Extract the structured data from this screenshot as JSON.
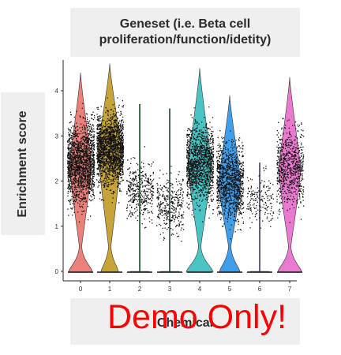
{
  "chart_data": {
    "type": "violin",
    "title": "Geneset (i.e. Beta cell\nproliferation/function/idetity)",
    "xlabel": "Chemical",
    "ylabel": "Enrichment score",
    "categories": [
      "0",
      "1",
      "2",
      "3",
      "4",
      "5",
      "6",
      "7"
    ],
    "y_ticks": [
      "0",
      "1",
      "2",
      "3",
      "4"
    ],
    "ylim": [
      -0.1,
      4.6
    ],
    "grid": false,
    "legend": "none",
    "series": [
      {
        "category": "0",
        "color": "#E8736C",
        "y_max": 4.4,
        "median": 2.4
      },
      {
        "category": "1",
        "color": "#C09A22",
        "y_max": 4.6,
        "median": 2.7
      },
      {
        "category": "2",
        "color": "#2BB14B",
        "y_max": 3.7,
        "median": 1.8
      },
      {
        "category": "3",
        "color": "#1FB77F",
        "y_max": 3.6,
        "median": 1.5
      },
      {
        "category": "4",
        "color": "#35BCBE",
        "y_max": 4.5,
        "median": 2.4
      },
      {
        "category": "5",
        "color": "#2C93E8",
        "y_max": 3.9,
        "median": 2.0
      },
      {
        "category": "6",
        "color": "#9B7FE6",
        "y_max": 2.4,
        "median": 1.6
      },
      {
        "category": "7",
        "color": "#E86ACB",
        "y_max": 4.3,
        "median": 2.3
      }
    ]
  },
  "watermark": "Demo Only!"
}
